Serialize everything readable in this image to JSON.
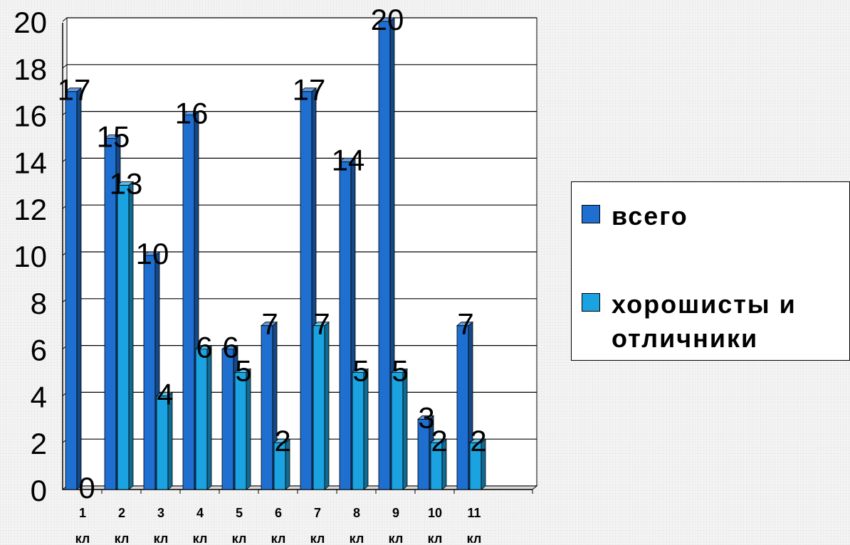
{
  "chart_data": {
    "type": "bar",
    "categories": [
      "1 кл",
      "2 кл",
      "3 кл",
      "4 кл",
      "5 кл",
      "6 кл",
      "7 кл",
      "8 кл",
      "9 кл",
      "10 кл",
      "11 кл"
    ],
    "category_lines": [
      [
        "1",
        "кл"
      ],
      [
        "2",
        "кл"
      ],
      [
        "3",
        "кл"
      ],
      [
        "4",
        "кл"
      ],
      [
        "5",
        "кл"
      ],
      [
        "6",
        "кл"
      ],
      [
        "7",
        "кл"
      ],
      [
        "8",
        "кл"
      ],
      [
        "9",
        "кл"
      ],
      [
        "10",
        "кл"
      ],
      [
        "11",
        "кл"
      ]
    ],
    "series": [
      {
        "name": "всего",
        "values": [
          17,
          15,
          10,
          16,
          6,
          7,
          17,
          14,
          20,
          3,
          7
        ],
        "color": "#1f6fd0"
      },
      {
        "name": "хорошисты и отличники",
        "values": [
          0,
          13,
          4,
          6,
          5,
          2,
          7,
          5,
          5,
          2,
          2
        ],
        "color": "#1aa3e0"
      }
    ],
    "ylim": [
      0,
      20
    ],
    "yticks": [
      0,
      2,
      4,
      6,
      8,
      10,
      12,
      14,
      16,
      18,
      20
    ],
    "grid": true,
    "legend_position": "right",
    "title": "",
    "xlabel": "",
    "ylabel": ""
  },
  "legend": {
    "items": [
      "всего",
      "хорошисты и отличники"
    ],
    "colors": [
      "#1f6fd0",
      "#1aa3e0"
    ]
  }
}
